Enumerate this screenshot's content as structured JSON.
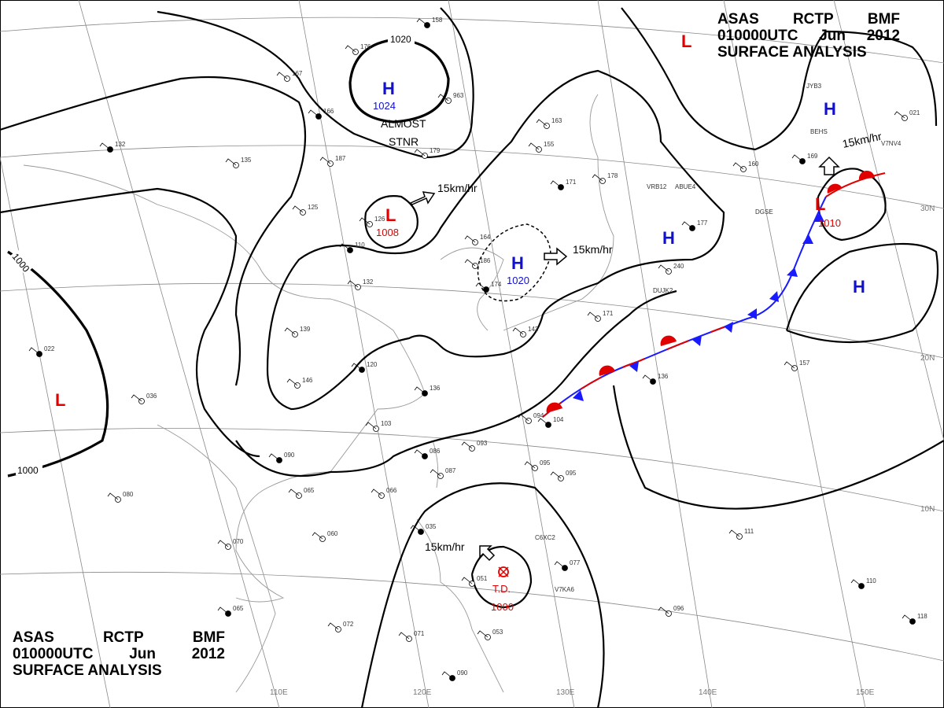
{
  "title": {
    "agency": "ASAS",
    "code": "RCTP",
    "issuer": "BMF",
    "time": "010000UTC",
    "month": "Jun",
    "year": "2012",
    "product": "SURFACE ANALYSIS"
  },
  "longitude_labels": [
    "110E",
    "120E",
    "130E",
    "140E",
    "150E"
  ],
  "latitude_labels": [
    "30N",
    "20N",
    "10N"
  ],
  "isobar_labels": [
    "1020",
    "1000",
    "1000"
  ],
  "pressure_systems": [
    {
      "symbol": "H",
      "value": "1024",
      "color": "#1010d0"
    },
    {
      "symbol": "L",
      "value": "1008",
      "color": "#e00000"
    },
    {
      "symbol": "H",
      "value": "1020",
      "color": "#1010d0"
    },
    {
      "symbol": "L",
      "value": "1010",
      "color": "#e00000"
    },
    {
      "symbol": "H",
      "value": "",
      "color": "#1010d0"
    },
    {
      "symbol": "H",
      "value": "",
      "color": "#1010d0"
    },
    {
      "symbol": "H",
      "value": "",
      "color": "#1010d0"
    },
    {
      "symbol": "L",
      "value": "",
      "color": "#e00000"
    },
    {
      "symbol": "L",
      "value": "",
      "color": "#e00000"
    }
  ],
  "tropical_depression": {
    "label": "T.D.",
    "value": "1000",
    "color": "#e00000"
  },
  "annotations": [
    "ALMOST",
    "STNR"
  ],
  "motion_labels": [
    "15km/hr",
    "15km/hr",
    "15km/hr",
    "15km/hr"
  ],
  "station_samples": [
    "158",
    "176",
    "167",
    "166",
    "187",
    "135",
    "132",
    "125",
    "126",
    "110",
    "132",
    "139",
    "120",
    "146",
    "103",
    "136",
    "164",
    "186",
    "174",
    "163",
    "155",
    "171",
    "178",
    "160",
    "177",
    "240",
    "171",
    "136",
    "157",
    "111",
    "110",
    "096",
    "095",
    "077",
    "093",
    "094",
    "104",
    "095",
    "087",
    "086",
    "066",
    "065",
    "090",
    "060",
    "070",
    "065",
    "072",
    "071",
    "035",
    "053",
    "051",
    "090",
    "080",
    "036",
    "022",
    "963",
    "179",
    "169",
    "143",
    "021",
    "118"
  ],
  "station_ids": [
    "VRB12",
    "ABUE4",
    "DGSE",
    "DUJK2",
    "C6XC2",
    "V7KA6",
    "V7NV4",
    "JYB3",
    "BEHS"
  ]
}
